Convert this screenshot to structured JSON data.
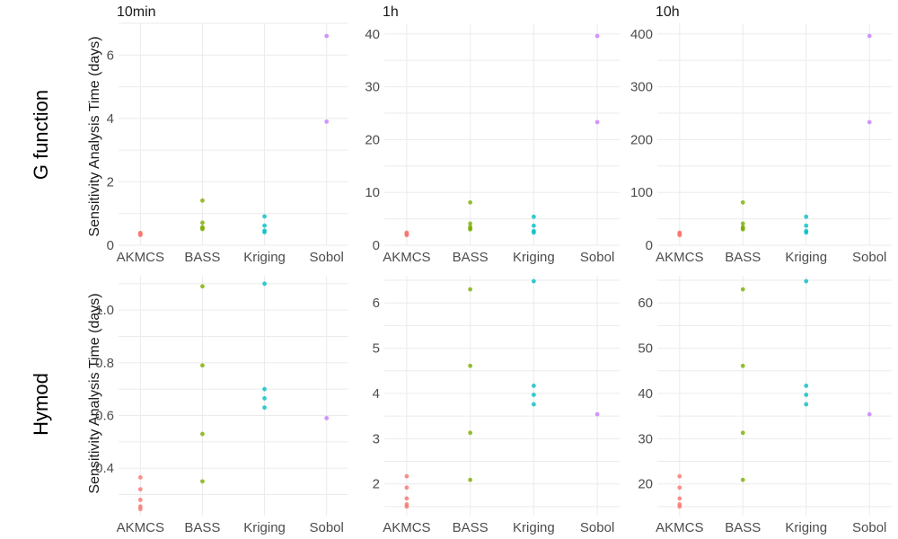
{
  "row_labels": [
    "G function",
    "Hymod"
  ],
  "col_labels": [
    "10min",
    "1h",
    "10h"
  ],
  "y_axis_label": "Sensitivity Analysis Time (days)",
  "categories": [
    "AKMCS",
    "BASS",
    "Kriging",
    "Sobol"
  ],
  "colors": {
    "AKMCS": "#F8766D",
    "BASS": "#7CAE00",
    "Kriging": "#00BFC4",
    "Sobol": "#C77CFF"
  },
  "chart_data": [
    {
      "type": "scatter",
      "row": "G function",
      "col": "10min",
      "ylim": [
        0,
        7
      ],
      "yticks": [
        0,
        2,
        4,
        6
      ],
      "points": {
        "AKMCS": [
          0.32,
          0.35,
          0.37,
          0.39
        ],
        "BASS": [
          0.51,
          0.54,
          0.57,
          0.71,
          1.41
        ],
        "Kriging": [
          0.41,
          0.46,
          0.62,
          0.91
        ],
        "Sobol": [
          3.9,
          6.6
        ]
      }
    },
    {
      "type": "scatter",
      "row": "G function",
      "col": "1h",
      "ylim": [
        0,
        42
      ],
      "yticks": [
        0,
        10,
        20,
        30,
        40
      ],
      "points": {
        "AKMCS": [
          1.9,
          2.1,
          2.2,
          2.4
        ],
        "BASS": [
          3.0,
          3.2,
          3.4,
          4.1,
          8.1
        ],
        "Kriging": [
          2.4,
          2.7,
          3.7,
          5.4
        ],
        "Sobol": [
          23.3,
          39.6
        ]
      }
    },
    {
      "type": "scatter",
      "row": "G function",
      "col": "10h",
      "ylim": [
        0,
        420
      ],
      "yticks": [
        0,
        100,
        200,
        300,
        400
      ],
      "points": {
        "AKMCS": [
          19,
          21,
          22,
          24
        ],
        "BASS": [
          30,
          32,
          34,
          41,
          81
        ],
        "Kriging": [
          24,
          27,
          37,
          54
        ],
        "Sobol": [
          233,
          396
        ]
      }
    },
    {
      "type": "scatter",
      "row": "Hymod",
      "col": "10min",
      "ylim": [
        0.22,
        1.13
      ],
      "yticks": [
        0.4,
        0.6,
        0.8,
        1.0
      ],
      "ytick_labels": [
        "0.4",
        "0.6",
        "0.8",
        "1.0"
      ],
      "points": {
        "AKMCS": [
          0.245,
          0.255,
          0.28,
          0.32,
          0.365
        ],
        "BASS": [
          0.35,
          0.53,
          0.79,
          1.09
        ],
        "Kriging": [
          0.63,
          0.665,
          0.7,
          1.1
        ],
        "Sobol": [
          0.59
        ]
      }
    },
    {
      "type": "scatter",
      "row": "Hymod",
      "col": "1h",
      "ylim": [
        1.3,
        6.6
      ],
      "yticks": [
        2,
        3,
        4,
        5,
        6
      ],
      "points": {
        "AKMCS": [
          1.5,
          1.55,
          1.68,
          1.92,
          2.17
        ],
        "BASS": [
          2.09,
          3.13,
          4.61,
          6.3
        ],
        "Kriging": [
          3.76,
          3.97,
          4.17,
          6.48
        ],
        "Sobol": [
          3.54
        ]
      }
    },
    {
      "type": "scatter",
      "row": "Hymod",
      "col": "10h",
      "ylim": [
        13,
        66
      ],
      "yticks": [
        20,
        30,
        40,
        50,
        60
      ],
      "points": {
        "AKMCS": [
          15,
          15.5,
          16.8,
          19.2,
          21.7
        ],
        "BASS": [
          20.9,
          31.3,
          46.1,
          63.0
        ],
        "Kriging": [
          37.6,
          39.7,
          41.7,
          64.8
        ],
        "Sobol": [
          35.4
        ]
      }
    }
  ]
}
